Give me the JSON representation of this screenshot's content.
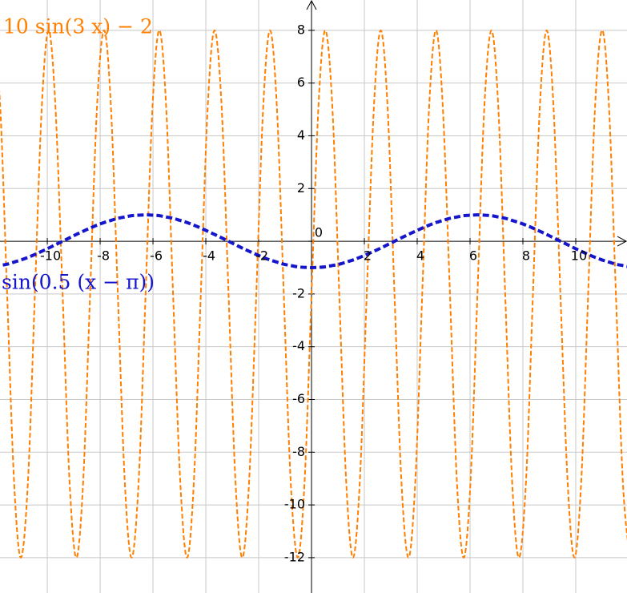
{
  "chart_data": {
    "type": "line",
    "xlim": [
      -11.79,
      11.94
    ],
    "ylim": [
      -13.34,
      9.15
    ],
    "xticks": [
      -10,
      -8,
      -6,
      -4,
      -2,
      2,
      4,
      6,
      8,
      10
    ],
    "yticks": [
      -12,
      -10,
      -8,
      -6,
      -4,
      -2,
      0,
      2,
      4,
      6,
      8
    ],
    "grid": true,
    "x": [
      -12.04,
      -11.78,
      -11.52,
      -11.26,
      -11,
      -10.73,
      -10.47,
      -10.21,
      -9.95,
      -9.69,
      -9.42,
      -9.16,
      -8.9,
      -8.64,
      -8.38,
      -8.12,
      -7.85,
      -7.59,
      -7.33,
      -7.07,
      -6.81,
      -6.54,
      -6.28,
      -6.02,
      -5.76,
      -5.5,
      -5.24,
      -4.97,
      -4.71,
      -4.45,
      -4.19,
      -3.93,
      -3.67,
      -3.4,
      -3.14,
      -2.88,
      -2.62,
      -2.36,
      -2.09,
      -1.83,
      -1.57,
      -1.31,
      -1.05,
      -0.79,
      -0.52,
      -0.26,
      0,
      0.26,
      0.52,
      0.79,
      1.05,
      1.31,
      1.57,
      1.83,
      2.09,
      2.36,
      2.62,
      2.88,
      3.14,
      3.4,
      3.67,
      3.93,
      4.19,
      4.45,
      4.71,
      4.97,
      5.24,
      5.5,
      5.76,
      6.02,
      6.28,
      6.54,
      6.81,
      7.07,
      7.33,
      7.59,
      7.85,
      8.12,
      8.38,
      8.64,
      8.9,
      9.16,
      9.42,
      9.69,
      9.95,
      10.21,
      10.47,
      10.73,
      11,
      11.26,
      11.52,
      11.78,
      12.04
    ],
    "series": [
      {
        "name": "10 sin(3 x) − 2",
        "color": "#ff7f00",
        "values": [
          8,
          5.07,
          -2,
          -9.07,
          -12,
          -9.07,
          -2,
          5.07,
          8,
          5.07,
          -2,
          -9.07,
          -12,
          -9.07,
          -2,
          5.07,
          8,
          5.07,
          -2,
          -9.07,
          -12,
          -9.07,
          -2,
          5.07,
          8,
          5.07,
          -2,
          -9.07,
          -12,
          -9.07,
          -2,
          5.07,
          8,
          5.07,
          -2,
          -9.07,
          -12,
          -9.07,
          -2,
          5.07,
          8,
          5.07,
          -2,
          -9.07,
          -12,
          -9.07,
          -2,
          5.07,
          8,
          5.07,
          -2,
          -9.07,
          -12,
          -9.07,
          -2,
          5.07,
          8,
          5.07,
          -2,
          -9.07,
          -12,
          -9.07,
          -2,
          5.07,
          8,
          5.07,
          -2,
          -9.07,
          -12,
          -9.07,
          -2,
          5.07,
          8,
          5.07,
          -2,
          -9.07,
          -12,
          -9.07,
          -2,
          5.07,
          8,
          5.07,
          -2,
          -9.07,
          -12,
          -9.07,
          -2,
          5.07,
          8,
          5.07,
          -2,
          -9.07,
          -12
        ]
      },
      {
        "name": "sin(0.5 (x − π))",
        "color": "#1515cc",
        "values": [
          -0.97,
          -0.92,
          -0.87,
          -0.79,
          -0.71,
          -0.61,
          -0.5,
          -0.38,
          -0.26,
          -0.13,
          0,
          0.13,
          0.26,
          0.38,
          0.5,
          0.61,
          0.71,
          0.79,
          0.87,
          0.92,
          0.97,
          0.99,
          1,
          0.99,
          0.97,
          0.92,
          0.87,
          0.79,
          0.71,
          0.61,
          0.5,
          0.38,
          0.26,
          0.13,
          0,
          -0.13,
          -0.26,
          -0.38,
          -0.5,
          -0.61,
          -0.71,
          -0.79,
          -0.87,
          -0.92,
          -0.97,
          -0.99,
          -1,
          -0.99,
          -0.97,
          -0.92,
          -0.87,
          -0.79,
          -0.71,
          -0.61,
          -0.5,
          -0.38,
          -0.26,
          -0.13,
          0,
          0.13,
          0.26,
          0.38,
          0.5,
          0.61,
          0.71,
          0.79,
          0.87,
          0.92,
          0.97,
          0.99,
          1,
          0.99,
          0.97,
          0.92,
          0.87,
          0.79,
          0.71,
          0.61,
          0.5,
          0.38,
          0.26,
          0.13,
          0,
          -0.13,
          -0.26,
          -0.38,
          -0.5,
          -0.61,
          -0.71,
          -0.79,
          -0.87,
          -0.92,
          -0.97
        ]
      }
    ]
  }
}
